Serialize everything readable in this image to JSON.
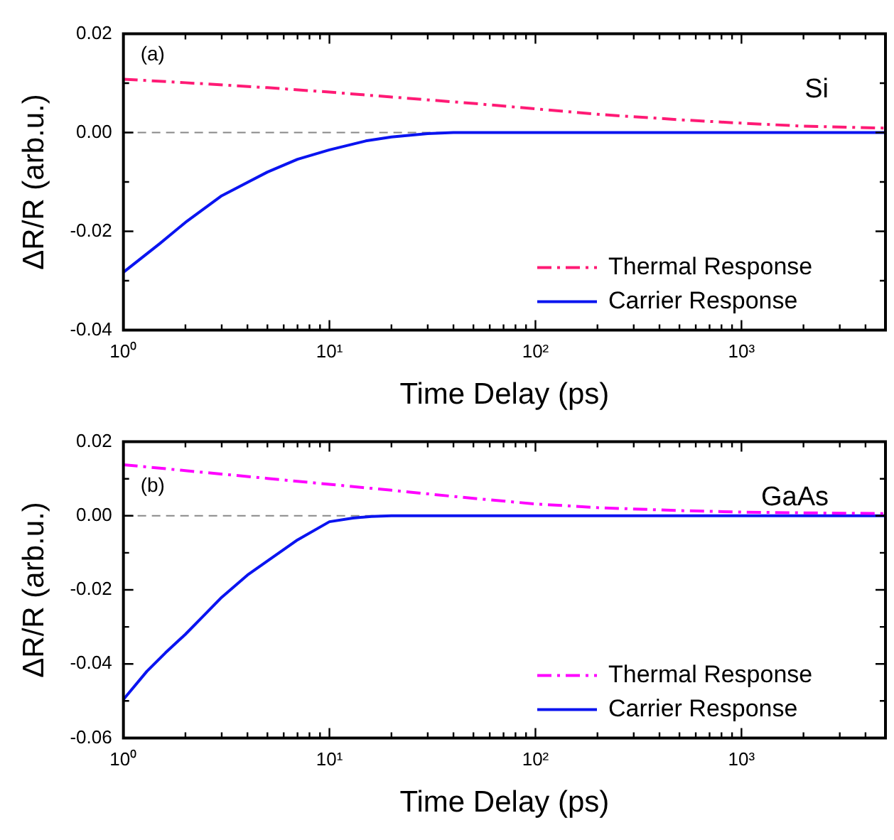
{
  "chart_data": [
    {
      "type": "line",
      "xlabel": "Time Delay (ps)",
      "ylabel": "ΔR/R (arb.u.)",
      "annotations": [
        "(a)",
        "Si"
      ],
      "log": "x",
      "xlim": [
        1,
        5000
      ],
      "xticks": [
        {
          "value": 1,
          "label": "10⁰"
        },
        {
          "value": 2,
          "label": null
        },
        {
          "value": 3,
          "label": null
        },
        {
          "value": 4,
          "label": null
        },
        {
          "value": 5,
          "label": null
        },
        {
          "value": 6,
          "label": null
        },
        {
          "value": 7,
          "label": null
        },
        {
          "value": 8,
          "label": null
        },
        {
          "value": 9,
          "label": null
        },
        {
          "value": 10,
          "label": "10¹"
        },
        {
          "value": 20,
          "label": null
        },
        {
          "value": 30,
          "label": null
        },
        {
          "value": 40,
          "label": null
        },
        {
          "value": 50,
          "label": null
        },
        {
          "value": 60,
          "label": null
        },
        {
          "value": 70,
          "label": null
        },
        {
          "value": 80,
          "label": null
        },
        {
          "value": 90,
          "label": null
        },
        {
          "value": 100,
          "label": "10²"
        },
        {
          "value": 200,
          "label": null
        },
        {
          "value": 300,
          "label": null
        },
        {
          "value": 400,
          "label": null
        },
        {
          "value": 500,
          "label": null
        },
        {
          "value": 600,
          "label": null
        },
        {
          "value": 700,
          "label": null
        },
        {
          "value": 800,
          "label": null
        },
        {
          "value": 900,
          "label": null
        },
        {
          "value": 1000,
          "label": "10³"
        },
        {
          "value": 2000,
          "label": null
        },
        {
          "value": 3000,
          "label": null
        },
        {
          "value": 4000,
          "label": null
        }
      ],
      "ylim": [
        -0.04,
        0.02
      ],
      "yticks": [
        {
          "value": -0.04,
          "label": "-0.04"
        },
        {
          "value": -0.02,
          "label": "-0.02"
        },
        {
          "value": 0,
          "label": "0.00"
        },
        {
          "value": 0.02,
          "label": "0.02"
        }
      ],
      "legend": "bottom right",
      "ref_lines": [
        {
          "axis": "y",
          "value": 0,
          "color": "#888888",
          "line_style": "dashed"
        }
      ],
      "series": [
        {
          "name": "Thermal Response",
          "color": "#ff1a75",
          "line_style": "dashed",
          "x": [
            1,
            2,
            5,
            10,
            20,
            50,
            100,
            200,
            500,
            1000,
            2000,
            5000
          ],
          "values": [
            0.0108,
            0.0101,
            0.0091,
            0.0082,
            0.0072,
            0.0059,
            0.0048,
            0.0037,
            0.0026,
            0.0019,
            0.0013,
            0.0009
          ]
        },
        {
          "name": "Carrier Response",
          "color": "#0a14f0",
          "line_style": "solid",
          "x": [
            1,
            1.5,
            2,
            3,
            5,
            7,
            10,
            15,
            20,
            30,
            40,
            60,
            100,
            1000,
            5000
          ],
          "values": [
            -0.0283,
            -0.0225,
            -0.0182,
            -0.0128,
            -0.008,
            -0.0054,
            -0.0035,
            -0.0017,
            -0.0009,
            -0.0002,
            0,
            0,
            0,
            0,
            0
          ]
        }
      ]
    },
    {
      "type": "line",
      "xlabel": "Time Delay (ps)",
      "ylabel": "ΔR/R (arb.u.)",
      "annotations": [
        "(b)",
        "GaAs"
      ],
      "log": "x",
      "xlim": [
        1,
        5000
      ],
      "xticks": [
        {
          "value": 1,
          "label": "10⁰"
        },
        {
          "value": 2,
          "label": null
        },
        {
          "value": 3,
          "label": null
        },
        {
          "value": 4,
          "label": null
        },
        {
          "value": 5,
          "label": null
        },
        {
          "value": 6,
          "label": null
        },
        {
          "value": 7,
          "label": null
        },
        {
          "value": 8,
          "label": null
        },
        {
          "value": 9,
          "label": null
        },
        {
          "value": 10,
          "label": "10¹"
        },
        {
          "value": 20,
          "label": null
        },
        {
          "value": 30,
          "label": null
        },
        {
          "value": 40,
          "label": null
        },
        {
          "value": 50,
          "label": null
        },
        {
          "value": 60,
          "label": null
        },
        {
          "value": 70,
          "label": null
        },
        {
          "value": 80,
          "label": null
        },
        {
          "value": 90,
          "label": null
        },
        {
          "value": 100,
          "label": "10²"
        },
        {
          "value": 200,
          "label": null
        },
        {
          "value": 300,
          "label": null
        },
        {
          "value": 400,
          "label": null
        },
        {
          "value": 500,
          "label": null
        },
        {
          "value": 600,
          "label": null
        },
        {
          "value": 700,
          "label": null
        },
        {
          "value": 800,
          "label": null
        },
        {
          "value": 900,
          "label": null
        },
        {
          "value": 1000,
          "label": "10³"
        },
        {
          "value": 2000,
          "label": null
        },
        {
          "value": 3000,
          "label": null
        },
        {
          "value": 4000,
          "label": null
        }
      ],
      "ylim": [
        -0.06,
        0.02
      ],
      "yticks": [
        {
          "value": -0.06,
          "label": "-0.06"
        },
        {
          "value": -0.04,
          "label": "-0.04"
        },
        {
          "value": -0.02,
          "label": "-0.02"
        },
        {
          "value": 0,
          "label": "0.00"
        },
        {
          "value": 0.02,
          "label": "0.02"
        }
      ],
      "legend": "bottom right",
      "ref_lines": [
        {
          "axis": "y",
          "value": 0,
          "color": "#888888",
          "line_style": "dashed"
        }
      ],
      "series": [
        {
          "name": "Thermal Response",
          "color": "#ff00ff",
          "line_style": "dashed",
          "x": [
            1,
            2,
            5,
            10,
            20,
            50,
            100,
            200,
            500,
            1000,
            2000,
            5000
          ],
          "values": [
            0.0138,
            0.0122,
            0.0101,
            0.0085,
            0.0069,
            0.0047,
            0.0032,
            0.0022,
            0.0014,
            0.001,
            0.0008,
            0.0006
          ]
        },
        {
          "name": "Carrier Response",
          "color": "#0a14f0",
          "line_style": "solid",
          "x": [
            1,
            1.3,
            1.6,
            2,
            2.5,
            3,
            4,
            5,
            7,
            10,
            13,
            16,
            20,
            30,
            100,
            1000,
            5000
          ],
          "values": [
            -0.0496,
            -0.042,
            -0.037,
            -0.032,
            -0.0265,
            -0.022,
            -0.016,
            -0.0122,
            -0.0065,
            -0.0016,
            -0.0006,
            -0.0002,
            0,
            0,
            0,
            0,
            0
          ]
        }
      ]
    }
  ]
}
